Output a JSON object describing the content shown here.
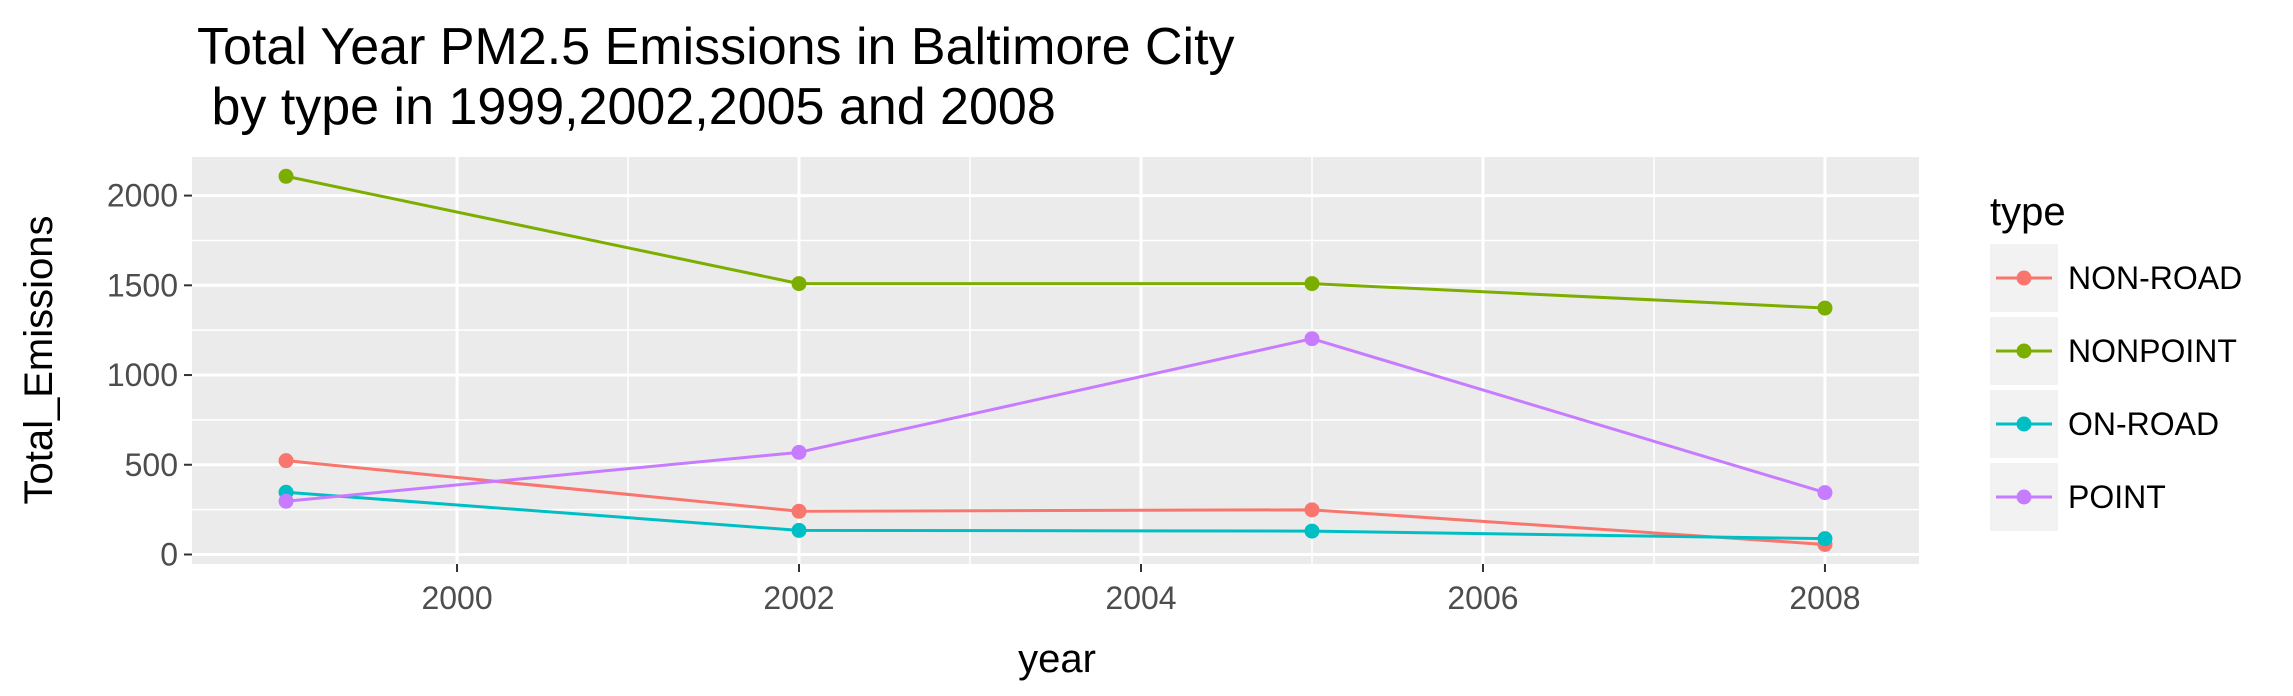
{
  "chart_data": {
    "type": "line",
    "title_line1": "Total Year PM2.5 Emissions in Baltimore City",
    "title_line2": " by type in 1999,2002,2005 and 2008",
    "xlabel": "year",
    "ylabel": "Total_Emissions",
    "x": [
      1999,
      2002,
      2005,
      2008
    ],
    "xlim": [
      1998.45,
      2008.55
    ],
    "ylim": [
      -53,
      2215
    ],
    "xticks": [
      2000,
      2002,
      2004,
      2006,
      2008
    ],
    "xtick_labels": [
      "2000",
      "2002",
      "2004",
      "2006",
      "2008"
    ],
    "yticks": [
      0,
      500,
      1000,
      1500,
      2000
    ],
    "ytick_labels": [
      "0",
      "500",
      "1000",
      "1500",
      "2000"
    ],
    "grid": true,
    "legend": {
      "title": "type",
      "position": "right"
    },
    "series": [
      {
        "name": "NON-ROAD",
        "color": "#F8766D",
        "values": [
          522.9,
          240.8,
          248.9,
          55.8
        ]
      },
      {
        "name": "NONPOINT",
        "color": "#7CAE00",
        "values": [
          2107.6,
          1509.5,
          1509.5,
          1373.2
        ]
      },
      {
        "name": "ON-ROAD",
        "color": "#00BFC4",
        "values": [
          346.8,
          134.3,
          130.4,
          88.3
        ]
      },
      {
        "name": "POINT",
        "color": "#C77CFF",
        "values": [
          296.8,
          569.3,
          1202.5,
          344.98
        ]
      }
    ]
  }
}
